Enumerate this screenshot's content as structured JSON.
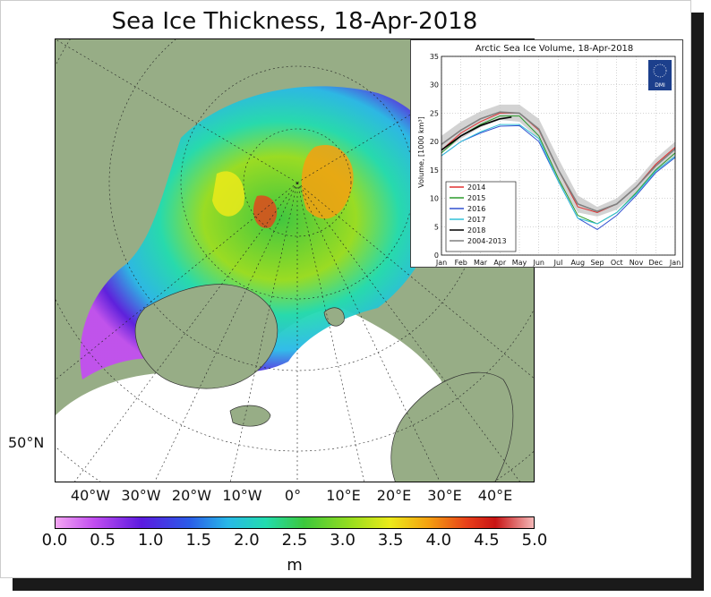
{
  "main_title": "Sea Ice Thickness, 18-Apr-2018",
  "map": {
    "lat_label": "50°N",
    "lon_labels": [
      "40°W",
      "30°W",
      "20°W",
      "10°W",
      "0°",
      "10°E",
      "20°E",
      "30°E",
      "40°E"
    ],
    "colors": {
      "land": "#97ad86",
      "open_water": "#ffffff"
    }
  },
  "colorbar": {
    "ticks": [
      "0.0",
      "0.5",
      "1.0",
      "1.5",
      "2.0",
      "2.5",
      "3.0",
      "3.5",
      "4.0",
      "4.5",
      "5.0"
    ],
    "unit": "m"
  },
  "chart_data": {
    "type": "line",
    "title": "Arctic Sea Ice Volume, 18-Apr-2018",
    "ylabel": "Volume, [1000 km³]",
    "xlabel": "",
    "ylim": [
      0,
      35
    ],
    "yticks": [
      0,
      5,
      10,
      15,
      20,
      25,
      30,
      35
    ],
    "x_categories": [
      "Jan",
      "Feb",
      "Mar",
      "Apr",
      "May",
      "Jun",
      "Jul",
      "Aug",
      "Sep",
      "Oct",
      "Nov",
      "Dec",
      "Jan"
    ],
    "grid": true,
    "legend_position": "bottom-left",
    "logo_text": "DMI",
    "band": {
      "name": "2004-2013",
      "x": [
        0,
        1,
        2,
        3,
        4,
        5,
        6,
        7,
        8,
        9,
        10,
        11,
        12
      ],
      "upper": [
        21,
        23.5,
        25.3,
        26.5,
        26.5,
        24,
        17,
        10.5,
        8.5,
        10,
        13,
        17,
        20
      ],
      "lower": [
        18,
        20.5,
        22.5,
        23.8,
        23.5,
        20.5,
        13,
        7.5,
        6.8,
        8,
        11,
        14.5,
        17.5
      ]
    },
    "series": [
      {
        "name": "2014",
        "color": "#e03030",
        "x": [
          0,
          1,
          2,
          3,
          4,
          5,
          6,
          7,
          8,
          9,
          10,
          11,
          12
        ],
        "y": [
          18.5,
          21.5,
          23.5,
          25,
          25,
          22,
          15,
          8.5,
          7.5,
          9,
          12,
          16,
          19
        ]
      },
      {
        "name": "2015",
        "color": "#2a9a2a",
        "x": [
          0,
          1,
          2,
          3,
          4,
          5,
          6,
          7,
          8,
          9,
          10,
          11,
          12
        ],
        "y": [
          18,
          21,
          23,
          24.5,
          24.5,
          21,
          13.5,
          7,
          5.5,
          7.5,
          11,
          15,
          18
        ]
      },
      {
        "name": "2016",
        "color": "#3050d0",
        "x": [
          0,
          1,
          2,
          3,
          4,
          5,
          6,
          7,
          8,
          9,
          10,
          11,
          12
        ],
        "y": [
          17.5,
          20,
          21.5,
          22.7,
          22.8,
          20,
          13,
          6.5,
          4.5,
          7,
          10.5,
          14.5,
          17.2
        ]
      },
      {
        "name": "2017",
        "color": "#30c0d8",
        "x": [
          0,
          1,
          2,
          3,
          4,
          5,
          6,
          7,
          8,
          9,
          10,
          11,
          12
        ],
        "y": [
          17.5,
          20,
          21.7,
          23,
          23,
          20.5,
          13,
          6.5,
          5.5,
          7.5,
          10.8,
          14.8,
          17.4
        ]
      },
      {
        "name": "2018",
        "color": "#000000",
        "x": [
          0,
          1,
          2,
          3,
          3.6
        ],
        "y": [
          18.5,
          21,
          22.8,
          24,
          24.3
        ]
      },
      {
        "name": "2004-2013",
        "color": "#808080",
        "x": [
          0,
          1,
          2,
          3,
          4,
          5,
          6,
          7,
          8,
          9,
          10,
          11,
          12
        ],
        "y": [
          19.5,
          22,
          24,
          25.2,
          25,
          22.2,
          15,
          9,
          7.7,
          9,
          12,
          15.7,
          18.7
        ]
      }
    ]
  }
}
